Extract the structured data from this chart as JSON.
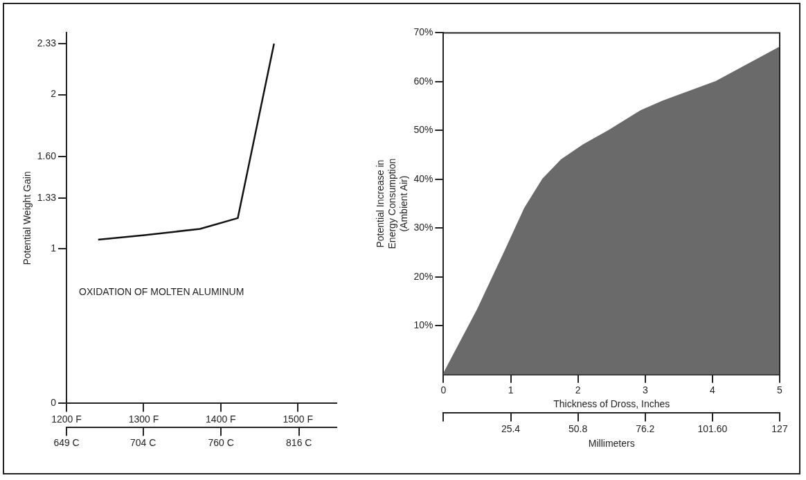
{
  "chart_data": [
    {
      "type": "line",
      "ylabel": "Potential Weight Gain",
      "annotations": [
        "OXIDATION OF MOLTEN ALUMINUM"
      ],
      "marker": "none",
      "line_style": "solid",
      "x": [
        1241,
        1301,
        1373,
        1422,
        1469
      ],
      "series": [
        {
          "color": "#111111",
          "values": [
            1.06,
            1.09,
            1.13,
            1.2,
            2.33
          ]
        }
      ],
      "xlim": [
        1200,
        1550
      ],
      "xticks": [
        {
          "value": 1200,
          "label": "1200 F"
        },
        {
          "value": 1300,
          "label": "1300 F"
        },
        {
          "value": 1400,
          "label": "1400 F"
        },
        {
          "value": 1500,
          "label": "1500 F"
        }
      ],
      "x2lim": [
        649,
        843
      ],
      "x2ticks": [
        {
          "value": 649,
          "label": "649 C"
        },
        {
          "value": 704,
          "label": "704 C"
        },
        {
          "value": 760,
          "label": "760 C"
        },
        {
          "value": 816,
          "label": "816 C"
        }
      ],
      "ylim": [
        0,
        2.4
      ],
      "yticks": [
        0,
        1,
        1.33,
        {
          "value": 1.6,
          "label": "1.60"
        },
        2,
        2.33
      ]
    },
    {
      "type": "area",
      "xlabel": "Thickness of Dross, Inches",
      "x2label": "Millimeters",
      "ylabel": "Potential Increase in\nEnergy Consumption\n(Ambient Air)",
      "marker": "none",
      "x": [
        0,
        0.5,
        0.91,
        1.21,
        1.48,
        1.76,
        2.08,
        2.47,
        2.94,
        3.27,
        4.06,
        5
      ],
      "series": [
        {
          "color": "#6a6a6a",
          "values": [
            0,
            13,
            25,
            34,
            40,
            44,
            47,
            50,
            54,
            56,
            60,
            67
          ]
        }
      ],
      "xlim": [
        0,
        5
      ],
      "xticks": [
        0,
        1,
        2,
        3,
        4,
        5
      ],
      "x2lim": [
        0,
        127
      ],
      "x2ticks": [
        {
          "value": 0,
          "label": null
        },
        25.4,
        50.8,
        76.2,
        {
          "value": 101.6,
          "label": "101.60"
        },
        127
      ],
      "ylim": [
        0,
        70
      ],
      "yticks": [
        {
          "value": 10,
          "label": "10%"
        },
        {
          "value": 20,
          "label": "20%"
        },
        {
          "value": 30,
          "label": "30%"
        },
        {
          "value": 40,
          "label": "40%"
        },
        {
          "value": 50,
          "label": "50%"
        },
        {
          "value": 60,
          "label": "60%"
        },
        {
          "value": 70,
          "label": "70%"
        }
      ]
    }
  ]
}
